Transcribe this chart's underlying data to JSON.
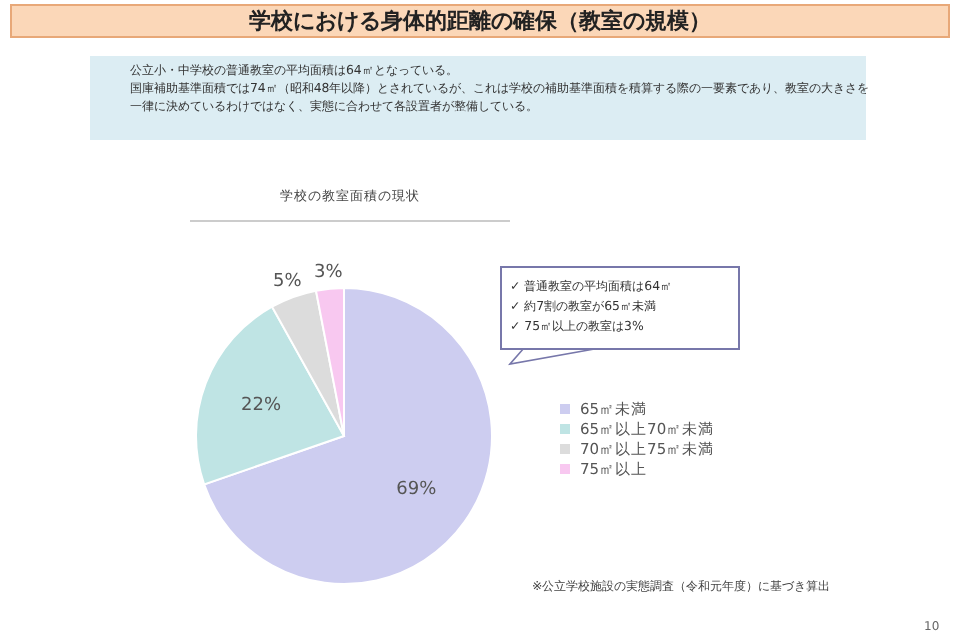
{
  "chart_data": {
    "type": "pie",
    "title": "学校における身体的距離の確保（教室の規模）",
    "subtitle": "学校の教室面積の現状",
    "categories": [
      "65㎡未満",
      "65㎡以上70㎡未満",
      "70㎡以上75㎡未満",
      "75㎡以上"
    ],
    "values": [
      69,
      22,
      5,
      3
    ],
    "colors": [
      "#cdcdf0",
      "#bfe4e4",
      "#dcdcdc",
      "#f8c8f0"
    ],
    "value_labels": [
      "69%",
      "22%",
      "5%",
      "3%"
    ],
    "legend": "right",
    "annotations": [
      "公立小・中学校の普通教室の平均面積は64㎡となっている。",
      "国庫補助基準面積では74㎡（昭和48年以降）とされているが、これは学校の補助基準面積を積算する際の一要素であり、教室の大きさを一律に決めているわけではなく、実態に合わせて各設置者が整備している。",
      "✓ 普通教室の平均面積は64㎡",
      "✓ 約7割の教室が65㎡未満",
      "✓ 75㎡以上の教室は3%",
      "※公立学校施設の実態調査（令和元年度）に基づき算出",
      "10"
    ]
  }
}
